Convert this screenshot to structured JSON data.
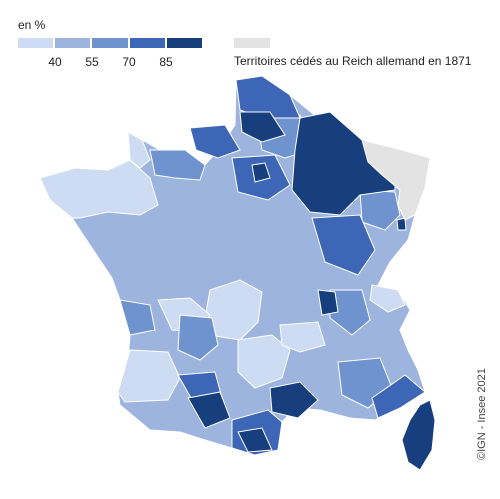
{
  "legend": {
    "title": "en %",
    "ticks": [
      "40",
      "55",
      "70",
      "85"
    ],
    "colors": [
      "#cddcf2",
      "#9db4df",
      "#6f93cf",
      "#3d66b6",
      "#173e7d"
    ]
  },
  "ceded": {
    "label": "Territoires cédés au Reich allemand en 1871",
    "color": "#e3e3e3"
  },
  "credit": "©IGN - Insee 2021",
  "map_colors": {
    "very_light": "#cddcf2",
    "light": "#9db4df",
    "medium": "#6f93cf",
    "strong": "#3d66b6",
    "very_strong": "#173e7d",
    "ceded": "#e3e3e3",
    "border": "#ffffff"
  }
}
